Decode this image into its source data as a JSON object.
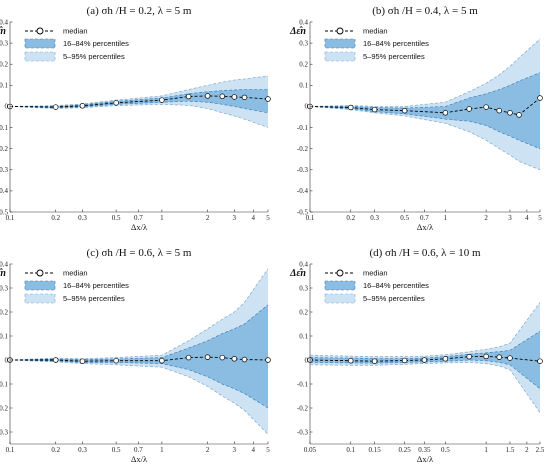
{
  "colors": {
    "band_16_84": "#8bbde3",
    "band_16_84_edge": "#3f7fb6",
    "band_5_95": "#cde3f4",
    "band_5_95_edge": "#7ea8cf",
    "median": "#000000"
  },
  "legend": {
    "median": "median",
    "band_16_84": "16–84% percentiles",
    "band_5_95": "5–95% percentiles"
  },
  "chart_data": [
    {
      "panel": "a",
      "type": "line",
      "title": "(a)  σh /H = 0.2, λ = 5 m",
      "ylabel": "Δε̂n",
      "xlabel": "Δx/λ",
      "xscale": "log",
      "xlim": [
        0.1,
        5
      ],
      "ylim": [
        -0.5,
        0.4
      ],
      "xticks": [
        0.1,
        0.2,
        0.3,
        0.5,
        0.7,
        1,
        2,
        3,
        4,
        5
      ],
      "xticklabels": [
        "0.1",
        "0.2",
        "0.3",
        "0.5",
        "0.7",
        "1",
        "2",
        "3",
        "4",
        "5"
      ],
      "yticks": [
        -0.5,
        -0.4,
        -0.3,
        -0.2,
        -0.1,
        0,
        0.1,
        0.2,
        0.3,
        0.4
      ],
      "yticklabels": [
        "-0.5",
        "-0.4",
        "-0.3",
        "-0.2",
        "-0.1",
        "0",
        "0.1",
        "0.2",
        "0.3",
        "0.4"
      ],
      "x": [
        0.1,
        0.2,
        0.3,
        0.5,
        1,
        1.5,
        2,
        2.5,
        3,
        3.5,
        5
      ],
      "median": [
        0,
        -0.003,
        0.003,
        0.017,
        0.03,
        0.047,
        0.05,
        0.048,
        0.045,
        0.043,
        0.035
      ],
      "p16": [
        0,
        -0.006,
        -0.002,
        0.01,
        0.02,
        0.025,
        0.02,
        0.01,
        0.0,
        -0.01,
        -0.03
      ],
      "p84": [
        0,
        0.0,
        0.008,
        0.024,
        0.04,
        0.06,
        0.07,
        0.075,
        0.078,
        0.08,
        0.08
      ],
      "p5": [
        0,
        -0.01,
        -0.006,
        0.004,
        0.01,
        0.005,
        -0.01,
        -0.03,
        -0.045,
        -0.06,
        -0.1
      ],
      "p95": [
        0,
        0.004,
        0.012,
        0.03,
        0.05,
        0.08,
        0.1,
        0.115,
        0.125,
        0.13,
        0.145
      ],
      "markers": [
        0.1,
        0.2,
        0.3,
        0.5,
        1,
        1.5,
        2,
        2.5,
        3,
        3.5,
        5
      ],
      "legend": "top-left"
    },
    {
      "panel": "b",
      "type": "line",
      "title": "(b)  σh /H = 0.4, λ = 5 m",
      "ylabel": "Δε̂n",
      "xlabel": "Δx/λ",
      "xscale": "log",
      "xlim": [
        0.1,
        5
      ],
      "ylim": [
        -0.5,
        0.4
      ],
      "xticks": [
        0.1,
        0.2,
        0.3,
        0.5,
        0.7,
        1,
        2,
        3,
        4,
        5
      ],
      "xticklabels": [
        "0.1",
        "0.2",
        "0.3",
        "0.5",
        "0.7",
        "1",
        "2",
        "3",
        "4",
        "5"
      ],
      "yticks": [
        -0.5,
        -0.4,
        -0.3,
        -0.2,
        -0.1,
        0,
        0.1,
        0.2,
        0.3,
        0.4
      ],
      "yticklabels": [
        "-0.5",
        "-0.4",
        "-0.3",
        "-0.2",
        "-0.1",
        "0",
        "0.1",
        "0.2",
        "0.3",
        "0.4"
      ],
      "x": [
        0.1,
        0.2,
        0.3,
        0.5,
        1,
        1.5,
        2,
        2.5,
        3,
        3.5,
        5
      ],
      "median": [
        0,
        -0.005,
        -0.015,
        -0.02,
        -0.03,
        -0.012,
        -0.003,
        -0.02,
        -0.03,
        -0.04,
        0.04
      ],
      "p16": [
        0,
        -0.01,
        -0.025,
        -0.035,
        -0.06,
        -0.07,
        -0.09,
        -0.12,
        -0.14,
        -0.16,
        -0.2
      ],
      "p84": [
        0,
        0.0,
        -0.005,
        -0.008,
        0.0,
        0.04,
        0.06,
        0.08,
        0.1,
        0.12,
        0.16
      ],
      "p5": [
        0,
        -0.015,
        -0.03,
        -0.045,
        -0.08,
        -0.12,
        -0.16,
        -0.2,
        -0.23,
        -0.26,
        -0.3
      ],
      "p95": [
        0,
        0.005,
        0.0,
        0.0,
        0.02,
        0.07,
        0.11,
        0.15,
        0.19,
        0.23,
        0.32
      ],
      "markers": [
        0.1,
        0.2,
        0.3,
        0.5,
        1,
        1.5,
        2,
        2.5,
        3,
        3.5,
        5
      ],
      "legend": "top-left"
    },
    {
      "panel": "c",
      "type": "line",
      "title": "(c)  σh /H = 0.6, λ = 5 m",
      "ylabel": "Δε̂n",
      "xlabel": "Δx/λ",
      "xscale": "log",
      "xlim": [
        0.1,
        5
      ],
      "ylim": [
        -0.35,
        0.4
      ],
      "xticks": [
        0.1,
        0.2,
        0.3,
        0.5,
        0.7,
        1,
        2,
        3,
        4,
        5
      ],
      "xticklabels": [
        "0.1",
        "0.2",
        "0.3",
        "0.5",
        "0.7",
        "1",
        "2",
        "3",
        "4",
        "5"
      ],
      "yticks": [
        -0.3,
        -0.2,
        -0.1,
        0,
        0.1,
        0.2,
        0.3,
        0.4
      ],
      "yticklabels": [
        "-0.3",
        "-0.2",
        "-0.1",
        "0",
        "0.1",
        "0.2",
        "0.3",
        "0.4"
      ],
      "x": [
        0.1,
        0.2,
        0.3,
        0.5,
        1,
        1.5,
        2,
        2.5,
        3,
        3.5,
        5
      ],
      "median": [
        0,
        0,
        -0.005,
        -0.003,
        -0.003,
        0.01,
        0.012,
        0.01,
        0.005,
        0.002,
        0.0
      ],
      "p16": [
        0,
        -0.004,
        -0.01,
        -0.01,
        -0.015,
        -0.04,
        -0.07,
        -0.1,
        -0.12,
        -0.14,
        -0.2
      ],
      "p84": [
        0,
        0.004,
        0.002,
        0.004,
        0.01,
        0.05,
        0.08,
        0.11,
        0.13,
        0.15,
        0.23
      ],
      "p5": [
        0,
        -0.008,
        -0.015,
        -0.02,
        -0.03,
        -0.07,
        -0.11,
        -0.15,
        -0.18,
        -0.21,
        -0.31
      ],
      "p95": [
        0,
        0.008,
        0.005,
        0.01,
        0.02,
        0.08,
        0.13,
        0.17,
        0.2,
        0.24,
        0.38
      ],
      "markers": [
        0.1,
        0.2,
        0.3,
        0.5,
        1,
        1.5,
        2,
        2.5,
        3,
        3.5,
        5
      ],
      "legend": "top-left"
    },
    {
      "panel": "d",
      "type": "line",
      "title": "(d)  σh /H = 0.6, λ = 10 m",
      "ylabel": "Δε̂n",
      "xlabel": "Δx/λ",
      "xscale": "log",
      "xlim": [
        0.05,
        2.5
      ],
      "ylim": [
        -0.35,
        0.4
      ],
      "xticks": [
        0.05,
        0.1,
        0.15,
        0.25,
        0.35,
        0.5,
        1,
        1.5,
        2,
        2.5
      ],
      "xticklabels": [
        "0.05",
        "0.1",
        "0.15",
        "0.25",
        "0.35",
        "0.5",
        "1",
        "1.5",
        "2",
        "2.5"
      ],
      "yticks": [
        -0.3,
        -0.2,
        -0.1,
        0,
        0.1,
        0.2,
        0.3,
        0.4
      ],
      "yticklabels": [
        "-0.3",
        "-0.2",
        "-0.1",
        "0",
        "0.1",
        "0.2",
        "0.3",
        "0.4"
      ],
      "x": [
        0.05,
        0.1,
        0.15,
        0.25,
        0.35,
        0.5,
        0.75,
        1,
        1.25,
        1.5,
        2.5
      ],
      "median": [
        0,
        -0.003,
        -0.005,
        -0.002,
        0.0,
        0.005,
        0.014,
        0.015,
        0.012,
        0.008,
        -0.005
      ],
      "p16": [
        -0.01,
        -0.012,
        -0.013,
        -0.01,
        -0.008,
        -0.005,
        0.0,
        -0.003,
        -0.01,
        -0.02,
        -0.12
      ],
      "p84": [
        0.01,
        0.008,
        0.006,
        0.006,
        0.008,
        0.014,
        0.024,
        0.03,
        0.035,
        0.04,
        0.12
      ],
      "p5": [
        -0.02,
        -0.022,
        -0.022,
        -0.018,
        -0.015,
        -0.012,
        -0.01,
        -0.015,
        -0.025,
        -0.04,
        -0.22
      ],
      "p95": [
        0.02,
        0.016,
        0.014,
        0.014,
        0.016,
        0.022,
        0.034,
        0.045,
        0.055,
        0.07,
        0.24
      ],
      "markers": [
        0.05,
        0.1,
        0.15,
        0.25,
        0.35,
        0.5,
        0.75,
        1,
        1.25,
        1.5,
        2.5
      ],
      "legend": "top-left"
    }
  ]
}
